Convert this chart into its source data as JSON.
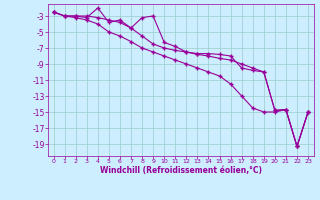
{
  "xlabel": "Windchill (Refroidissement éolien,°C)",
  "bg_color": "#cceeff",
  "line_color": "#990099",
  "grid_color": "#99cccc",
  "xlim": [
    -0.5,
    23.5
  ],
  "ylim": [
    -20.5,
    -1.5
  ],
  "yticks": [
    -19,
    -17,
    -15,
    -13,
    -11,
    -9,
    -7,
    -5,
    -3
  ],
  "xticks": [
    0,
    1,
    2,
    3,
    4,
    5,
    6,
    7,
    8,
    9,
    10,
    11,
    12,
    13,
    14,
    15,
    16,
    17,
    18,
    19,
    20,
    21,
    22,
    23
  ],
  "series1_x": [
    0,
    1,
    2,
    3,
    4,
    5,
    6,
    7,
    8,
    9,
    10,
    11,
    12,
    13,
    14,
    15,
    16,
    17,
    18,
    19,
    20,
    21,
    22,
    23
  ],
  "series1_y": [
    -2.5,
    -3.0,
    -3.0,
    -3.2,
    -2.0,
    -3.8,
    -3.5,
    -4.5,
    -3.2,
    -3.0,
    -6.3,
    -6.8,
    -7.5,
    -7.7,
    -7.7,
    -7.8,
    -8.0,
    -9.5,
    -9.8,
    -10.0,
    -14.8,
    -14.7,
    -19.3,
    -15.0
  ],
  "series2_x": [
    0,
    1,
    2,
    3,
    4,
    5,
    6,
    7,
    8,
    9,
    10,
    11,
    12,
    13,
    14,
    15,
    16,
    17,
    18,
    19,
    20,
    21,
    22,
    23
  ],
  "series2_y": [
    -2.5,
    -3.0,
    -3.0,
    -3.0,
    -3.2,
    -3.5,
    -3.8,
    -4.5,
    -5.5,
    -6.5,
    -7.0,
    -7.3,
    -7.5,
    -7.8,
    -8.0,
    -8.3,
    -8.5,
    -9.0,
    -9.5,
    -10.0,
    -14.8,
    -14.7,
    -19.3,
    -15.0
  ],
  "series3_x": [
    0,
    1,
    2,
    3,
    4,
    5,
    6,
    7,
    8,
    9,
    10,
    11,
    12,
    13,
    14,
    15,
    16,
    17,
    18,
    19,
    20,
    21,
    22,
    23
  ],
  "series3_y": [
    -2.5,
    -3.0,
    -3.2,
    -3.5,
    -4.0,
    -5.0,
    -5.5,
    -6.2,
    -7.0,
    -7.5,
    -8.0,
    -8.5,
    -9.0,
    -9.5,
    -10.0,
    -10.5,
    -11.5,
    -13.0,
    -14.5,
    -15.0,
    -15.0,
    -14.7,
    -19.3,
    -15.0
  ]
}
